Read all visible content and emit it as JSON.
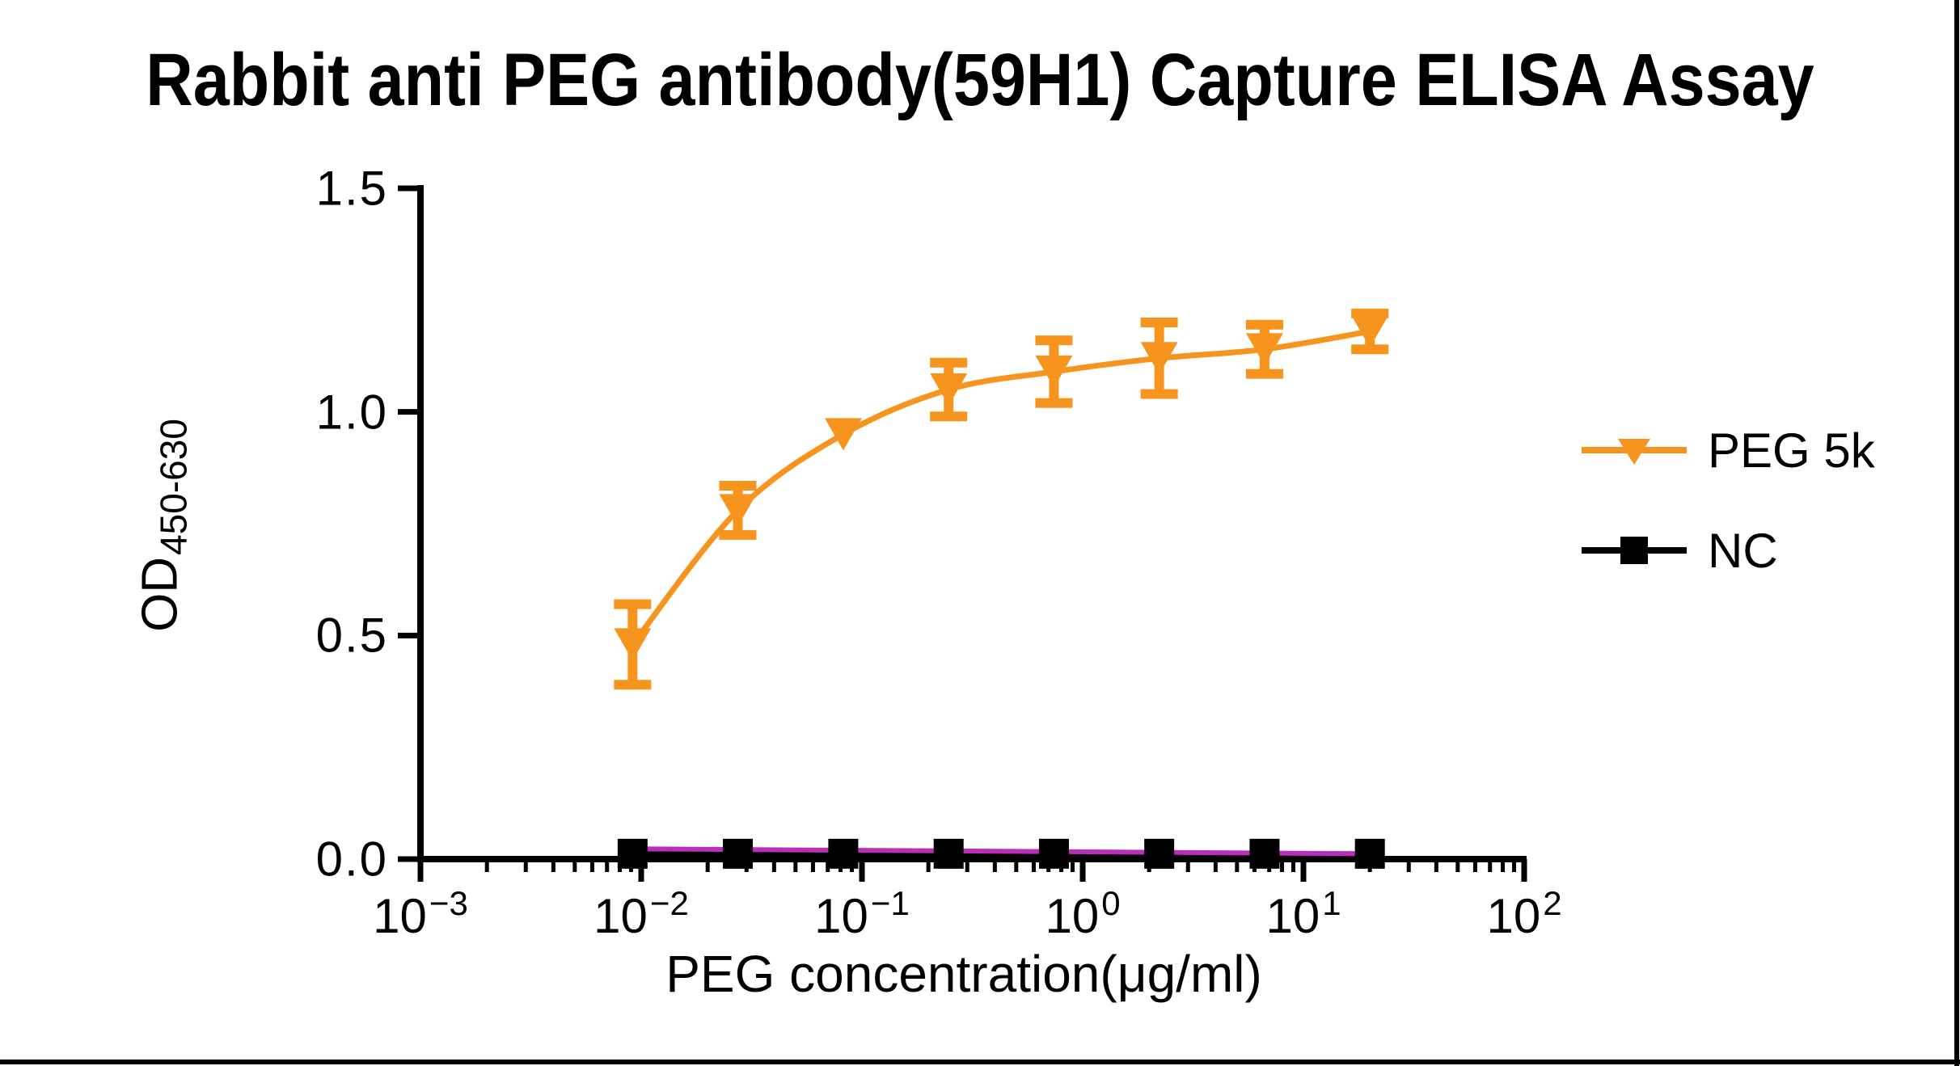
{
  "chart_data": {
    "type": "line",
    "title": "Rabbit anti PEG antibody(59H1) Capture ELISA Assay",
    "xlabel": "PEG concentration(μg/ml)",
    "ylabel_main": "OD",
    "ylabel_sub": "450-630",
    "x_scale": "log10",
    "xlim": [
      0.001,
      100
    ],
    "x_tick_exponents": [
      -3,
      -2,
      -1,
      0,
      1,
      2
    ],
    "y_ticks": [
      "0.0",
      "0.5",
      "1.0",
      "1.5"
    ],
    "ylim": [
      0,
      1.5
    ],
    "grid": false,
    "series": [
      {
        "name": "PEG 5k",
        "color": "#F7941E",
        "marker": "triangle-down",
        "line": "smooth-fit",
        "x": [
          0.00914,
          0.0274,
          0.0823,
          0.247,
          0.741,
          2.222,
          6.667,
          20
        ],
        "y": [
          0.48,
          0.78,
          0.95,
          1.05,
          1.09,
          1.12,
          1.14,
          1.18
        ],
        "err": [
          0.09,
          0.055,
          0,
          0.06,
          0.07,
          0.08,
          0.055,
          0.04
        ]
      },
      {
        "name": "NC",
        "color": "#000000",
        "marker": "square",
        "line": "straight",
        "x": [
          0.00914,
          0.0274,
          0.0823,
          0.247,
          0.741,
          2.222,
          6.667,
          20
        ],
        "y": [
          0.012,
          0.012,
          0.012,
          0.012,
          0.012,
          0.012,
          0.012,
          0.012
        ],
        "err": [
          0,
          0,
          0,
          0,
          0,
          0,
          0,
          0
        ],
        "fit_color": "#BB2EBB",
        "fit_y": [
          0.023,
          0.012
        ]
      }
    ],
    "legend": {
      "position": "right",
      "items": [
        {
          "label": "PEG 5k"
        },
        {
          "label": "NC"
        }
      ]
    }
  }
}
